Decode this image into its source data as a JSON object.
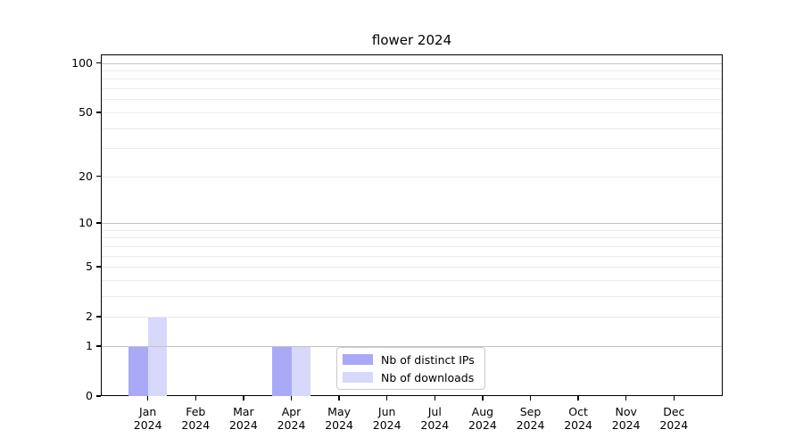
{
  "title": "flower 2024",
  "legend": {
    "items": [
      {
        "label": "Nb of distinct IPs",
        "color": "#a9a9f7"
      },
      {
        "label": "Nb of downloads",
        "color": "#d8d8fa"
      }
    ]
  },
  "axes": {
    "y_ticks": [
      0,
      1,
      2,
      5,
      10,
      20,
      50,
      100
    ],
    "grid_major_values": [
      1,
      10,
      100
    ],
    "grid_minor_values": [
      2,
      3,
      4,
      5,
      6,
      7,
      8,
      9,
      20,
      30,
      40,
      50,
      60,
      70,
      80,
      90
    ],
    "months": [
      "Jan",
      "Feb",
      "Mar",
      "Apr",
      "May",
      "Jun",
      "Jul",
      "Aug",
      "Sep",
      "Oct",
      "Nov",
      "Dec"
    ],
    "year": "2024"
  },
  "colors": {
    "bar_distinct_ips": "#a9a9f7",
    "bar_downloads": "#d8d8fa",
    "grid_major": "#c4c4c4",
    "grid_minor": "#eaeaea",
    "spine": "#000000",
    "legend_border": "#c9c9c9"
  },
  "chart_data": {
    "type": "bar",
    "title": "flower 2024",
    "categories": [
      "Jan 2024",
      "Feb 2024",
      "Mar 2024",
      "Apr 2024",
      "May 2024",
      "Jun 2024",
      "Jul 2024",
      "Aug 2024",
      "Sep 2024",
      "Oct 2024",
      "Nov 2024",
      "Dec 2024"
    ],
    "series": [
      {
        "name": "Nb of distinct IPs",
        "color": "#a9a9f7",
        "values": [
          1,
          0,
          0,
          1,
          0,
          0,
          0,
          0,
          0,
          0,
          0,
          0
        ]
      },
      {
        "name": "Nb of downloads",
        "color": "#d8d8fa",
        "values": [
          2,
          0,
          0,
          1,
          0,
          0,
          0,
          0,
          0,
          0,
          0,
          0
        ]
      }
    ],
    "xlabel": "",
    "ylabel": "",
    "yscale": "log-like (position proportional to log10(1+y))",
    "yticks": [
      0,
      1,
      2,
      5,
      10,
      20,
      50,
      100
    ],
    "ylim": [
      0,
      113
    ],
    "grid": "horizontal, major lines at 1/10/100 darker, minor log subdivisions lighter, drawn over bars",
    "legend_position": "inside plot, lower center"
  }
}
